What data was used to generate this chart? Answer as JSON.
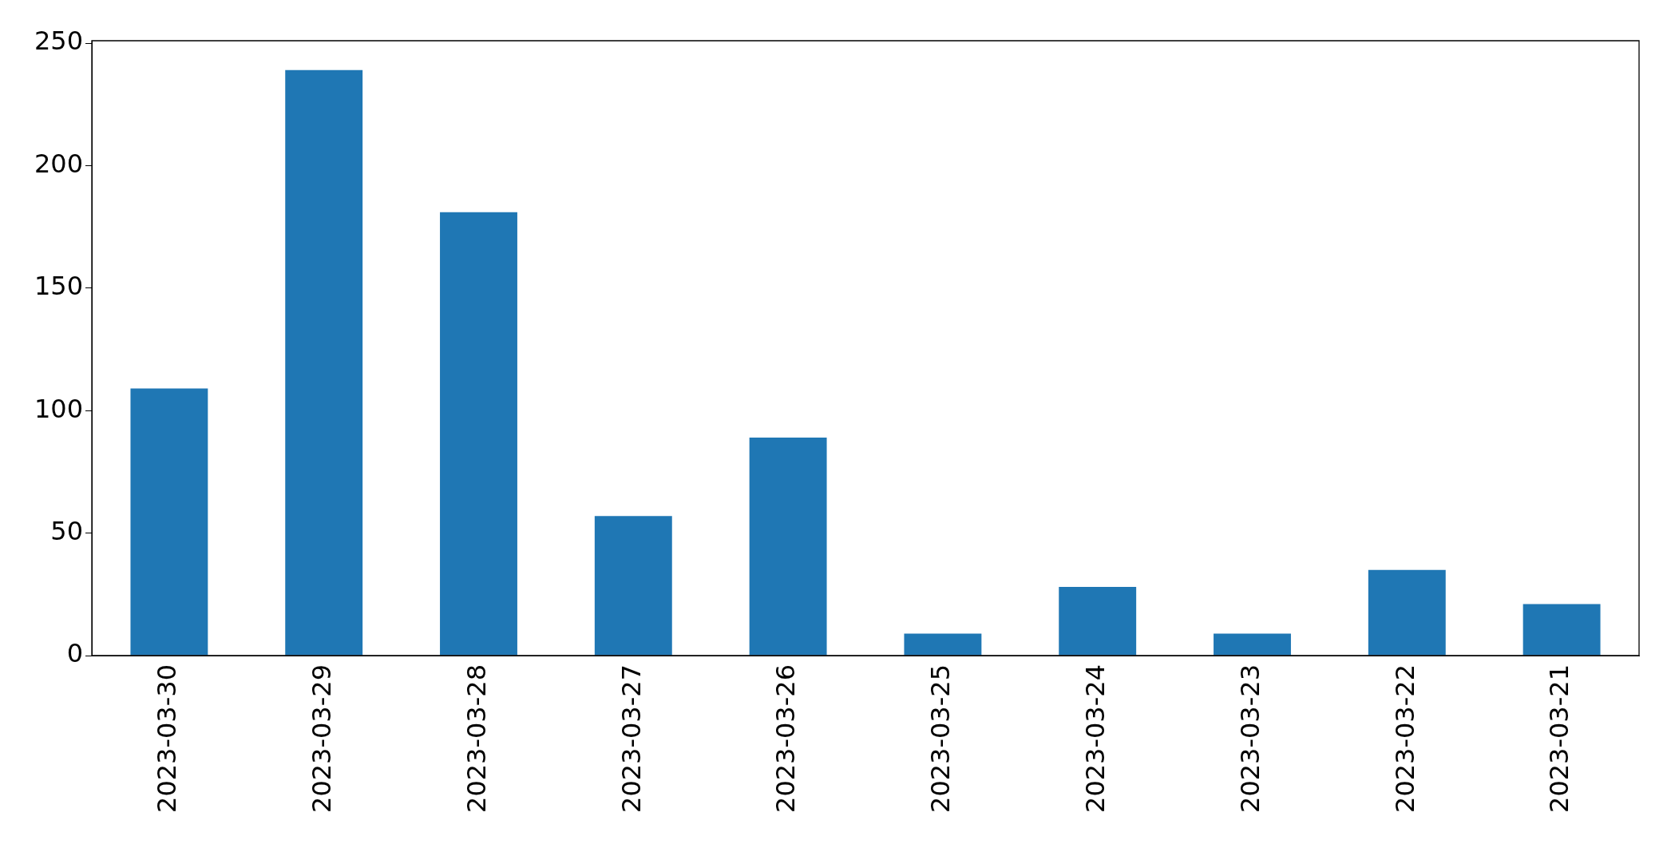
{
  "chart_data": {
    "type": "bar",
    "categories": [
      "2023-03-30",
      "2023-03-29",
      "2023-03-28",
      "2023-03-27",
      "2023-03-26",
      "2023-03-25",
      "2023-03-24",
      "2023-03-23",
      "2023-03-22",
      "2023-03-21"
    ],
    "values": [
      109,
      239,
      181,
      57,
      89,
      9,
      28,
      9,
      35,
      21
    ],
    "color": "#1f77b4",
    "ylim": [
      0,
      251
    ],
    "yticks": [
      0,
      50,
      100,
      150,
      200,
      250
    ],
    "grid": false,
    "legend": false
  }
}
